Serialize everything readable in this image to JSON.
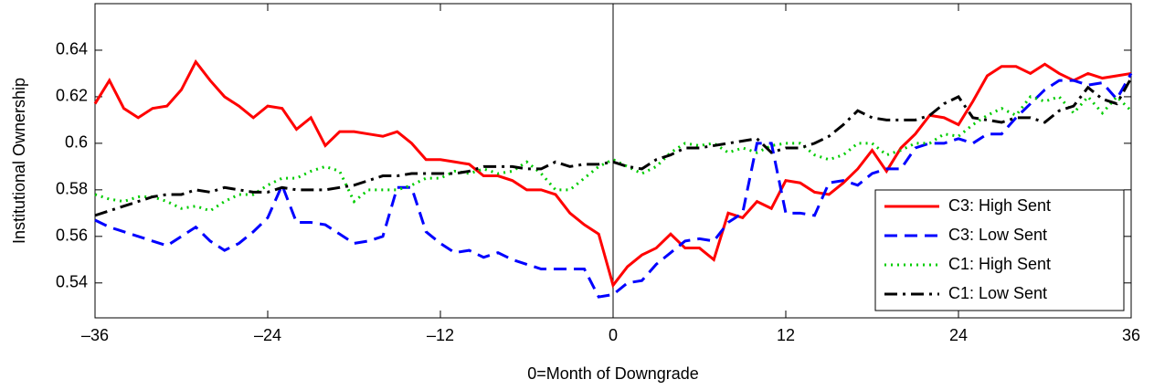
{
  "chart_data": {
    "type": "line",
    "xlabel": "0=Month of Downgrade",
    "ylabel": "Institutional Ownership",
    "x": [
      -36,
      -35,
      -34,
      -33,
      -32,
      -31,
      -30,
      -29,
      -28,
      -27,
      -26,
      -25,
      -24,
      -23,
      -22,
      -21,
      -20,
      -19,
      -18,
      -17,
      -16,
      -15,
      -14,
      -13,
      -12,
      -11,
      -10,
      -9,
      -8,
      -7,
      -6,
      -5,
      -4,
      -3,
      -2,
      -1,
      0,
      1,
      2,
      3,
      4,
      5,
      6,
      7,
      8,
      9,
      10,
      11,
      12,
      13,
      14,
      15,
      16,
      17,
      18,
      19,
      20,
      21,
      22,
      23,
      24,
      25,
      26,
      27,
      28,
      29,
      30,
      31,
      32,
      33,
      34,
      35,
      36
    ],
    "series": [
      {
        "name": "C3: High Sent",
        "color": "#ff0000",
        "style": "solid",
        "values": [
          0.617,
          0.627,
          0.615,
          0.611,
          0.615,
          0.616,
          0.623,
          0.635,
          0.627,
          0.62,
          0.616,
          0.611,
          0.616,
          0.615,
          0.606,
          0.611,
          0.599,
          0.605,
          0.605,
          0.604,
          0.603,
          0.605,
          0.6,
          0.593,
          0.593,
          0.592,
          0.591,
          0.586,
          0.586,
          0.584,
          0.58,
          0.58,
          0.578,
          0.57,
          0.565,
          0.561,
          0.539,
          0.547,
          0.552,
          0.555,
          0.561,
          0.555,
          0.555,
          0.55,
          0.57,
          0.568,
          0.575,
          0.572,
          0.584,
          0.583,
          0.579,
          0.578,
          0.583,
          0.589,
          0.597,
          0.588,
          0.598,
          0.604,
          0.612,
          0.611,
          0.608,
          0.618,
          0.629,
          0.633,
          0.633,
          0.63,
          0.634,
          0.63,
          0.627,
          0.63,
          0.628,
          0.629,
          0.63
        ]
      },
      {
        "name": "C3: Low Sent",
        "color": "#0000ff",
        "style": "dashed",
        "values": [
          0.567,
          0.564,
          0.562,
          0.56,
          0.558,
          0.556,
          0.56,
          0.564,
          0.558,
          0.554,
          0.557,
          0.562,
          0.568,
          0.582,
          0.566,
          0.566,
          0.565,
          0.561,
          0.557,
          0.558,
          0.56,
          0.581,
          0.581,
          0.562,
          0.557,
          0.553,
          0.554,
          0.551,
          0.553,
          0.55,
          0.548,
          0.546,
          0.546,
          0.546,
          0.546,
          0.534,
          0.535,
          0.54,
          0.541,
          0.548,
          0.553,
          0.558,
          0.559,
          0.558,
          0.566,
          0.57,
          0.6,
          0.6,
          0.57,
          0.57,
          0.569,
          0.583,
          0.584,
          0.582,
          0.587,
          0.589,
          0.589,
          0.598,
          0.6,
          0.6,
          0.602,
          0.6,
          0.604,
          0.604,
          0.611,
          0.617,
          0.623,
          0.627,
          0.627,
          0.625,
          0.626,
          0.619,
          0.63
        ]
      },
      {
        "name": "C1: High Sent",
        "color": "#00cc00",
        "style": "dotted",
        "values": [
          0.578,
          0.576,
          0.575,
          0.577,
          0.577,
          0.575,
          0.572,
          0.573,
          0.571,
          0.575,
          0.578,
          0.578,
          0.582,
          0.585,
          0.585,
          0.588,
          0.59,
          0.588,
          0.575,
          0.58,
          0.58,
          0.58,
          0.582,
          0.585,
          0.585,
          0.588,
          0.587,
          0.589,
          0.587,
          0.588,
          0.592,
          0.587,
          0.58,
          0.58,
          0.585,
          0.59,
          0.593,
          0.59,
          0.587,
          0.59,
          0.596,
          0.6,
          0.599,
          0.6,
          0.596,
          0.598,
          0.596,
          0.599,
          0.6,
          0.6,
          0.595,
          0.593,
          0.595,
          0.6,
          0.6,
          0.595,
          0.597,
          0.6,
          0.6,
          0.604,
          0.603,
          0.608,
          0.612,
          0.615,
          0.612,
          0.62,
          0.618,
          0.62,
          0.613,
          0.62,
          0.613,
          0.62,
          0.614
        ]
      },
      {
        "name": "C1: Low Sent",
        "color": "#000000",
        "style": "dashdot",
        "values": [
          0.569,
          0.571,
          0.573,
          0.575,
          0.577,
          0.578,
          0.578,
          0.58,
          0.579,
          0.581,
          0.58,
          0.579,
          0.579,
          0.581,
          0.58,
          0.58,
          0.58,
          0.581,
          0.582,
          0.584,
          0.586,
          0.586,
          0.587,
          0.587,
          0.587,
          0.587,
          0.588,
          0.59,
          0.59,
          0.59,
          0.589,
          0.589,
          0.592,
          0.59,
          0.591,
          0.591,
          0.592,
          0.59,
          0.589,
          0.593,
          0.595,
          0.598,
          0.598,
          0.599,
          0.6,
          0.601,
          0.602,
          0.596,
          0.598,
          0.598,
          0.6,
          0.603,
          0.608,
          0.614,
          0.611,
          0.61,
          0.61,
          0.61,
          0.612,
          0.617,
          0.62,
          0.611,
          0.61,
          0.609,
          0.611,
          0.611,
          0.609,
          0.614,
          0.616,
          0.624,
          0.619,
          0.617,
          0.628
        ]
      }
    ],
    "xlim": [
      -36,
      36
    ],
    "xticks": [
      {
        "value": -36,
        "label": "–36"
      },
      {
        "value": -24,
        "label": "–24"
      },
      {
        "value": -12,
        "label": "–12"
      },
      0,
      12,
      24,
      36
    ],
    "ylim": [
      0.525,
      0.66
    ],
    "yticks": [
      0.54,
      0.56,
      0.58,
      0.6,
      0.62,
      0.64
    ],
    "vline": 0,
    "legend": "lower right"
  }
}
